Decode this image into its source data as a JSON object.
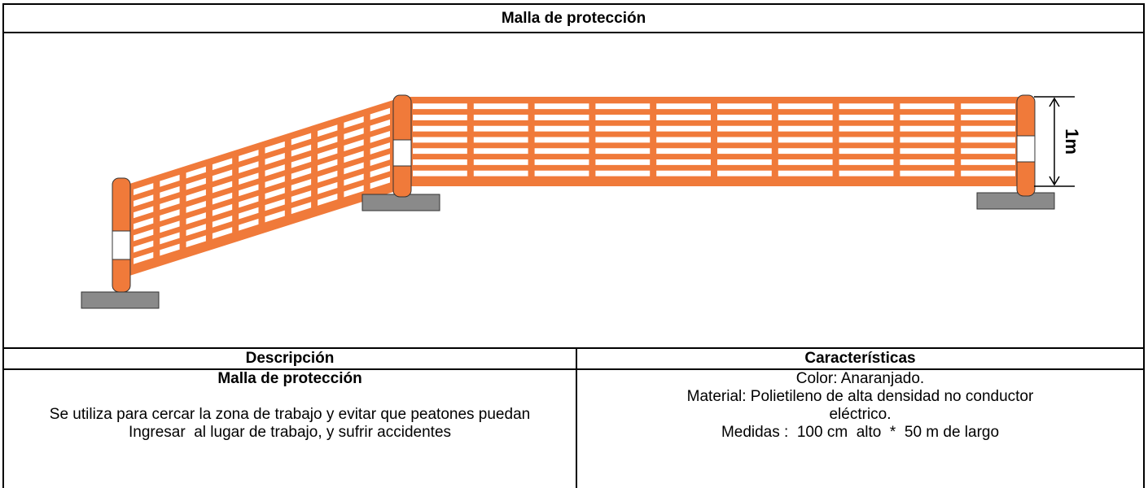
{
  "header": {
    "title": "Malla de protección"
  },
  "figure": {
    "dimension_label": "1m"
  },
  "table": {
    "headers": [
      "Descripción",
      "Características"
    ],
    "description": {
      "title": "Malla de protección",
      "lines": [
        "Se utiliza para cercar la zona de trabajo y evitar que peatones puedan",
        "Ingresar  al lugar de trabajo, y sufrir accidentes"
      ]
    },
    "characteristics": [
      "Color: Anaranjado.",
      "Material: Polietileno de alta densidad no conductor eléctrico.",
      "Medidas :  100 cm  alto  *  50 m de largo"
    ]
  }
}
